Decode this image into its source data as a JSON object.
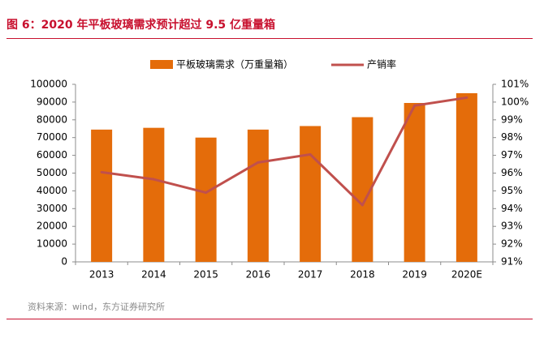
{
  "title": "图 6：2020 年平板玻璃需求预计超过 9.5 亿重量箱",
  "source": "资料来源：wind，东方证券研究所",
  "colors": {
    "title": "#c8102e",
    "bar": "#e46c0a",
    "line": "#c0504d",
    "rule": "#c8102e",
    "axis": "#8c8c8c",
    "text": "#000000"
  },
  "chart_data": {
    "type": "bar",
    "categories": [
      "2013",
      "2014",
      "2015",
      "2016",
      "2017",
      "2018",
      "2019",
      "2020E"
    ],
    "series": [
      {
        "name": "平板玻璃需求（万重量箱）",
        "type": "bar",
        "axis": "left",
        "values": [
          74500,
          75500,
          70000,
          74500,
          76500,
          81500,
          89500,
          95000
        ]
      },
      {
        "name": "产销率",
        "type": "line",
        "axis": "right",
        "unit": "%",
        "values": [
          96.05,
          95.65,
          94.9,
          96.6,
          97.05,
          94.2,
          99.8,
          100.25
        ]
      }
    ],
    "yleft": {
      "lim": [
        0,
        100000
      ],
      "ticks": [
        "100000",
        "90000",
        "80000",
        "70000",
        "60000",
        "50000",
        "40000",
        "30000",
        "20000",
        "10000",
        "0"
      ]
    },
    "yright": {
      "lim": [
        91,
        101
      ],
      "ticks": [
        "101%",
        "100%",
        "99%",
        "98%",
        "97%",
        "96%",
        "95%",
        "94%",
        "93%",
        "92%",
        "91%"
      ]
    },
    "grid": false,
    "legend_position": "top"
  }
}
